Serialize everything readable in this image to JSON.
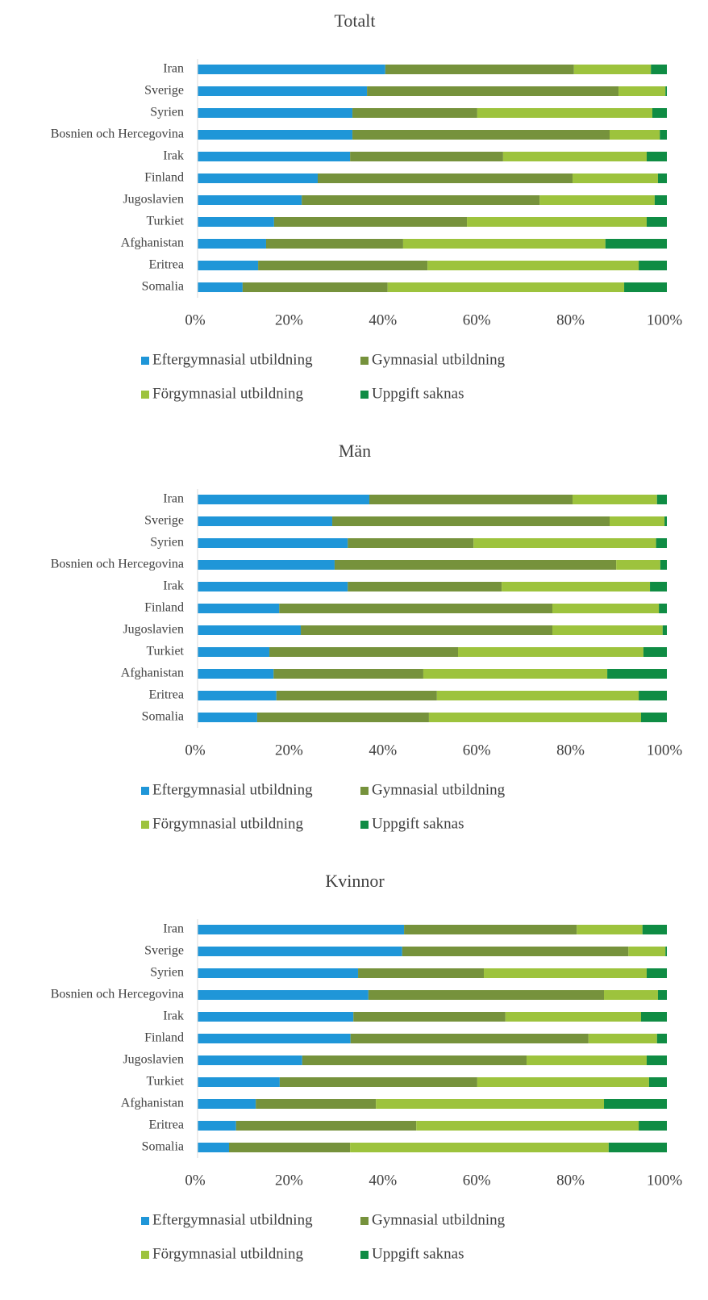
{
  "chart_data": [
    {
      "type": "bar",
      "orientation": "horizontal",
      "stacked": true,
      "title": "Totalt",
      "categories": [
        "Iran",
        "Sverige",
        "Syrien",
        "Bosnien och Hercegovina",
        "Irak",
        "Finland",
        "Jugoslavien",
        "Turkiet",
        "Afghanistan",
        "Eritrea",
        "Somalia"
      ],
      "series": [
        {
          "name": "Eftergymnasial utbildning",
          "color": "#1f96d8",
          "values": [
            40.0,
            36.1,
            33.0,
            33.0,
            32.5,
            25.6,
            22.2,
            16.3,
            14.6,
            12.9,
            9.6
          ]
        },
        {
          "name": "Gymnasial utbildning",
          "color": "#76923c",
          "values": [
            40.2,
            53.6,
            26.6,
            54.8,
            32.6,
            54.3,
            50.7,
            41.1,
            29.2,
            36.1,
            30.9
          ]
        },
        {
          "name": "Förgymnasial utbildning",
          "color": "#9dc33d",
          "values": [
            16.4,
            10.0,
            37.3,
            10.7,
            30.6,
            18.2,
            24.5,
            38.3,
            43.1,
            45.0,
            50.4
          ]
        },
        {
          "name": "Uppgift saknas",
          "color": "#0f8c44",
          "values": [
            3.4,
            0.3,
            3.1,
            1.5,
            4.3,
            1.9,
            2.6,
            4.3,
            13.1,
            6.0,
            9.1
          ]
        }
      ],
      "xlim": [
        0,
        100
      ],
      "xticks": [
        {
          "value": 0,
          "label": "0%"
        },
        {
          "value": 20,
          "label": "20%"
        },
        {
          "value": 40,
          "label": "40%"
        },
        {
          "value": 60,
          "label": "60%"
        },
        {
          "value": 80,
          "label": "80%"
        },
        {
          "value": 100,
          "label": "100%"
        }
      ]
    },
    {
      "type": "bar",
      "orientation": "horizontal",
      "stacked": true,
      "title": "Män",
      "categories": [
        "Iran",
        "Sverige",
        "Syrien",
        "Bosnien och Hercegovina",
        "Irak",
        "Finland",
        "Jugoslavien",
        "Turkiet",
        "Afghanistan",
        "Eritrea",
        "Somalia"
      ],
      "series": [
        {
          "name": "Eftergymnasial utbildning",
          "color": "#1f96d8",
          "values": [
            36.6,
            28.7,
            32.0,
            29.2,
            32.0,
            17.4,
            22.0,
            15.3,
            16.2,
            16.8,
            12.7
          ]
        },
        {
          "name": "Gymnasial utbildning",
          "color": "#76923c",
          "values": [
            43.3,
            59.1,
            26.8,
            60.0,
            32.8,
            58.2,
            53.6,
            40.2,
            31.9,
            34.2,
            36.6
          ]
        },
        {
          "name": "Förgymnasial utbildning",
          "color": "#9dc33d",
          "values": [
            18.0,
            11.7,
            38.9,
            9.4,
            31.6,
            22.7,
            23.5,
            39.5,
            39.2,
            43.0,
            45.2
          ]
        },
        {
          "name": "Uppgift saknas",
          "color": "#0f8c44",
          "values": [
            2.1,
            0.5,
            2.3,
            1.4,
            3.6,
            1.7,
            0.9,
            5.0,
            12.7,
            6.0,
            5.5
          ]
        }
      ],
      "xlim": [
        0,
        100
      ],
      "xticks": [
        {
          "value": 0,
          "label": "0%"
        },
        {
          "value": 20,
          "label": "20%"
        },
        {
          "value": 40,
          "label": "40%"
        },
        {
          "value": 60,
          "label": "60%"
        },
        {
          "value": 80,
          "label": "80%"
        },
        {
          "value": 100,
          "label": "100%"
        }
      ]
    },
    {
      "type": "bar",
      "orientation": "horizontal",
      "stacked": true,
      "title": "Kvinnor",
      "categories": [
        "Iran",
        "Sverige",
        "Syrien",
        "Bosnien och Hercegovina",
        "Irak",
        "Finland",
        "Jugoslavien",
        "Turkiet",
        "Afghanistan",
        "Eritrea",
        "Somalia"
      ],
      "series": [
        {
          "name": "Eftergymnasial utbildning",
          "color": "#1f96d8",
          "values": [
            44.0,
            43.6,
            34.2,
            36.4,
            33.2,
            32.6,
            22.3,
            17.5,
            12.4,
            8.2,
            6.7
          ]
        },
        {
          "name": "Gymnasial utbildning",
          "color": "#76923c",
          "values": [
            36.8,
            48.2,
            26.8,
            50.2,
            32.4,
            50.7,
            47.8,
            42.1,
            25.6,
            38.4,
            25.8
          ]
        },
        {
          "name": "Förgymnasial utbildning",
          "color": "#9dc33d",
          "values": [
            14.0,
            7.9,
            34.7,
            11.5,
            28.9,
            14.6,
            25.6,
            36.6,
            48.6,
            47.4,
            55.1
          ]
        },
        {
          "name": "Uppgift saknas",
          "color": "#0f8c44",
          "values": [
            5.2,
            0.3,
            4.3,
            1.9,
            5.5,
            2.1,
            4.3,
            3.8,
            13.4,
            6.0,
            12.4
          ]
        }
      ],
      "xlim": [
        0,
        100
      ],
      "xticks": [
        {
          "value": 0,
          "label": "0%"
        },
        {
          "value": 20,
          "label": "20%"
        },
        {
          "value": 40,
          "label": "40%"
        },
        {
          "value": 60,
          "label": "60%"
        },
        {
          "value": 80,
          "label": "80%"
        },
        {
          "value": 100,
          "label": "100%"
        }
      ]
    }
  ]
}
